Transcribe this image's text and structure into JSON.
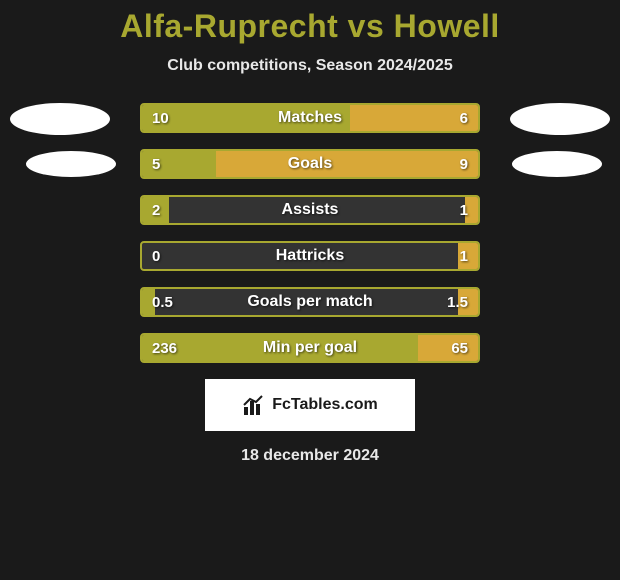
{
  "title_color": "#a8a830",
  "title": "Alfa-Ruprecht vs Howell",
  "subtitle": "Club competitions, Season 2024/2025",
  "left_color": "#a8a830",
  "right_color": "#d8a838",
  "background_color": "#1a1a1a",
  "bar_bg_color": "#333333",
  "bars": [
    {
      "label": "Matches",
      "left_val": "10",
      "right_val": "6",
      "left_pct": 62,
      "right_pct": 38
    },
    {
      "label": "Goals",
      "left_val": "5",
      "right_val": "9",
      "left_pct": 22,
      "right_pct": 78
    },
    {
      "label": "Assists",
      "left_val": "2",
      "right_val": "1",
      "left_pct": 8,
      "right_pct": 4
    },
    {
      "label": "Hattricks",
      "left_val": "0",
      "right_val": "1",
      "left_pct": 0,
      "right_pct": 6
    },
    {
      "label": "Goals per match",
      "left_val": "0.5",
      "right_val": "1.5",
      "left_pct": 4,
      "right_pct": 6
    },
    {
      "label": "Min per goal",
      "left_val": "236",
      "right_val": "65",
      "left_pct": 82,
      "right_pct": 18
    }
  ],
  "brand": "FcTables.com",
  "date": "18 december 2024"
}
